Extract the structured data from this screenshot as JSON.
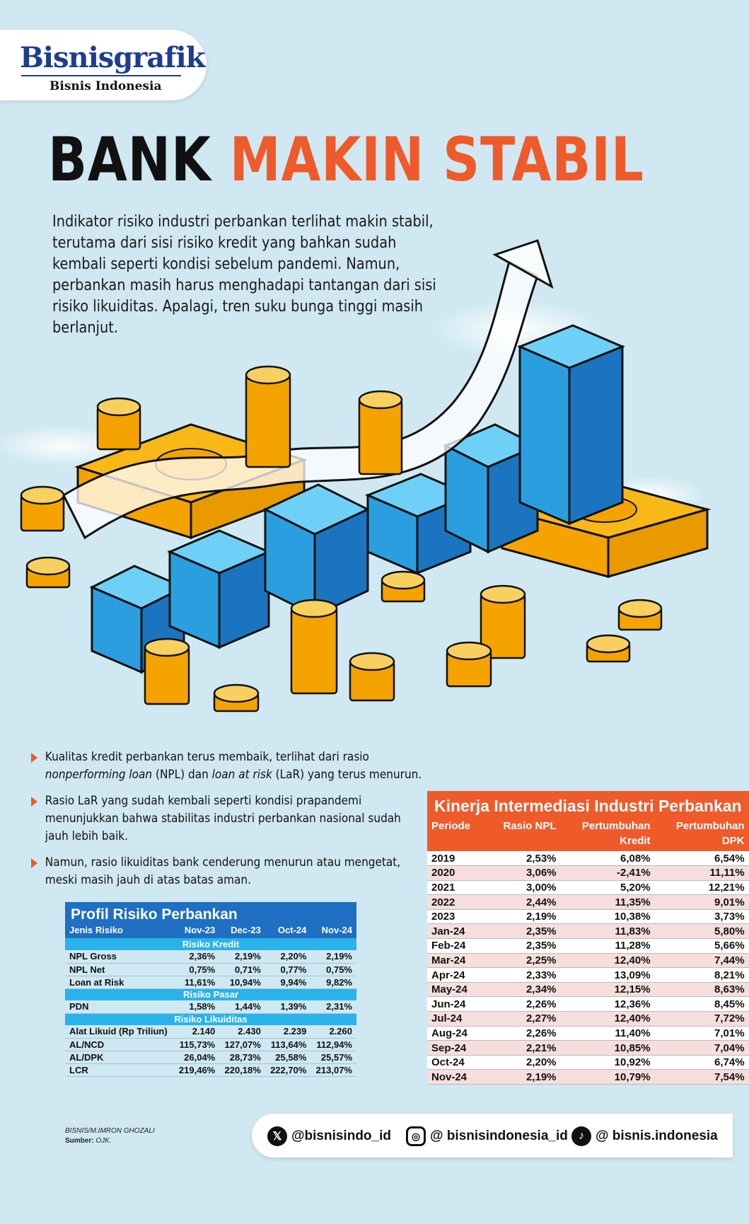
{
  "brand": {
    "logo": "Bisnisgrafik",
    "sub": "Bisnis Indonesia"
  },
  "title": {
    "part1": "BANK",
    "part2": "MAKIN STABIL"
  },
  "intro": "Indikator risiko industri perbankan terlihat makin stabil, terutama dari sisi risiko kredit yang bahkan sudah kembali seperti kondisi sebelum pandemi. Namun, perbankan masih harus menghadapi tantangan dari sisi risiko likuiditas. Apalagi, tren suku bunga tinggi masih berlanjut.",
  "bullets": [
    {
      "pre": "Kualitas kredit perbankan terus membaik, terlihat dari rasio ",
      "em1": "nonperforming loan",
      "mid": " (NPL) dan ",
      "em2": "loan at risk",
      "post": " (LaR) yang terus menurun."
    },
    {
      "pre": "Rasio LaR yang sudah kembali seperti kondisi prapandemi menunjukkan  bahwa stabilitas industri perbankan nasional sudah jauh lebih baik.",
      "em1": "",
      "mid": "",
      "em2": "",
      "post": ""
    },
    {
      "pre": "Namun, rasio likuiditas bank cenderung menurun atau mengetat, meski masih jauh di atas batas aman.",
      "em1": "",
      "mid": "",
      "em2": "",
      "post": ""
    }
  ],
  "chart_data": [
    {
      "type": "table",
      "title": "Profil Risiko Perbankan",
      "columns": [
        "Jenis Risiko",
        "Nov-23",
        "Dec-23",
        "Oct-24",
        "Nov-24"
      ],
      "sections": [
        {
          "name": "Risiko Kredit",
          "rows": [
            [
              "NPL Gross",
              "2,36%",
              "2,19%",
              "2,20%",
              "2,19%"
            ],
            [
              "NPL Net",
              "0,75%",
              "0,71%",
              "0,77%",
              "0,75%"
            ],
            [
              "Loan at Risk",
              "11,61%",
              "10,94%",
              "9,94%",
              "9,82%"
            ]
          ]
        },
        {
          "name": "Risiko Pasar",
          "rows": [
            [
              "PDN",
              "1,58%",
              "1,44%",
              "1,39%",
              "2,31%"
            ]
          ]
        },
        {
          "name": "Risiko Likuiditas",
          "rows": [
            [
              "Alat Likuid (Rp Triliun)",
              "2.140",
              "2.430",
              "2.239",
              "2.260"
            ],
            [
              "AL/NCD",
              "115,73%",
              "127,07%",
              "113,64%",
              "112,94%"
            ],
            [
              "AL/DPK",
              "26,04%",
              "28,73%",
              "25,58%",
              "25,57%"
            ],
            [
              "LCR",
              "219,46%",
              "220,18%",
              "222,70%",
              "213,07%"
            ]
          ]
        }
      ]
    },
    {
      "type": "table",
      "title": "Kinerja Intermediasi Industri Perbankan",
      "columns": [
        "Periode",
        "Rasio NPL",
        "Pertumbuhan Kredit",
        "Pertumbuhan DPK"
      ],
      "columns_display": [
        [
          "Periode"
        ],
        [
          "Rasio NPL"
        ],
        [
          "Pertumbuhan",
          "Kredit"
        ],
        [
          "Pertumbuhan",
          "DPK"
        ]
      ],
      "rows": [
        [
          "2019",
          "2,53%",
          "6,08%",
          "6,54%"
        ],
        [
          "2020",
          "3,06%",
          "-2,41%",
          "11,11%"
        ],
        [
          "2021",
          "3,00%",
          "5,20%",
          "12,21%"
        ],
        [
          "2022",
          "2,44%",
          "11,35%",
          "9,01%"
        ],
        [
          "2023",
          "2,19%",
          "10,38%",
          "3,73%"
        ],
        [
          "Jan-24",
          "2,35%",
          "11,83%",
          "5,80%"
        ],
        [
          "Feb-24",
          "2,35%",
          "11,28%",
          "5,66%"
        ],
        [
          "Mar-24",
          "2,25%",
          "12,40%",
          "7,44%"
        ],
        [
          "Apr-24",
          "2,33%",
          "13,09%",
          "8,21%"
        ],
        [
          "May-24",
          "2,34%",
          "12,15%",
          "8,63%"
        ],
        [
          "Jun-24",
          "2,26%",
          "12,36%",
          "8,45%"
        ],
        [
          "Jul-24",
          "2,27%",
          "12,40%",
          "7,72%"
        ],
        [
          "Aug-24",
          "2,26%",
          "11,40%",
          "7,01%"
        ],
        [
          "Sep-24",
          "2,21%",
          "10,85%",
          "7,04%"
        ],
        [
          "Oct-24",
          "2,20%",
          "10,92%",
          "6,74%"
        ],
        [
          "Nov-24",
          "2,19%",
          "10,79%",
          "7,54%"
        ]
      ]
    }
  ],
  "credit": {
    "author": "BISNIS/M.IMRON GHOZALI",
    "source_label": "Sumber:",
    "source": "OJK."
  },
  "social": [
    {
      "icon": "x-icon",
      "glyph": "𝕏",
      "handle": "@bisnisindo_id"
    },
    {
      "icon": "instagram-icon",
      "glyph": "◎",
      "handle": "@ bisnisindonesia_id"
    },
    {
      "icon": "tiktok-icon",
      "glyph": "♪",
      "handle": "@ bisnis.indonesia"
    }
  ],
  "colors": {
    "accent": "#ef5a2a",
    "blue": "#1f6fc2",
    "cyan": "#29b3ea",
    "background": "#cfe8f1"
  }
}
